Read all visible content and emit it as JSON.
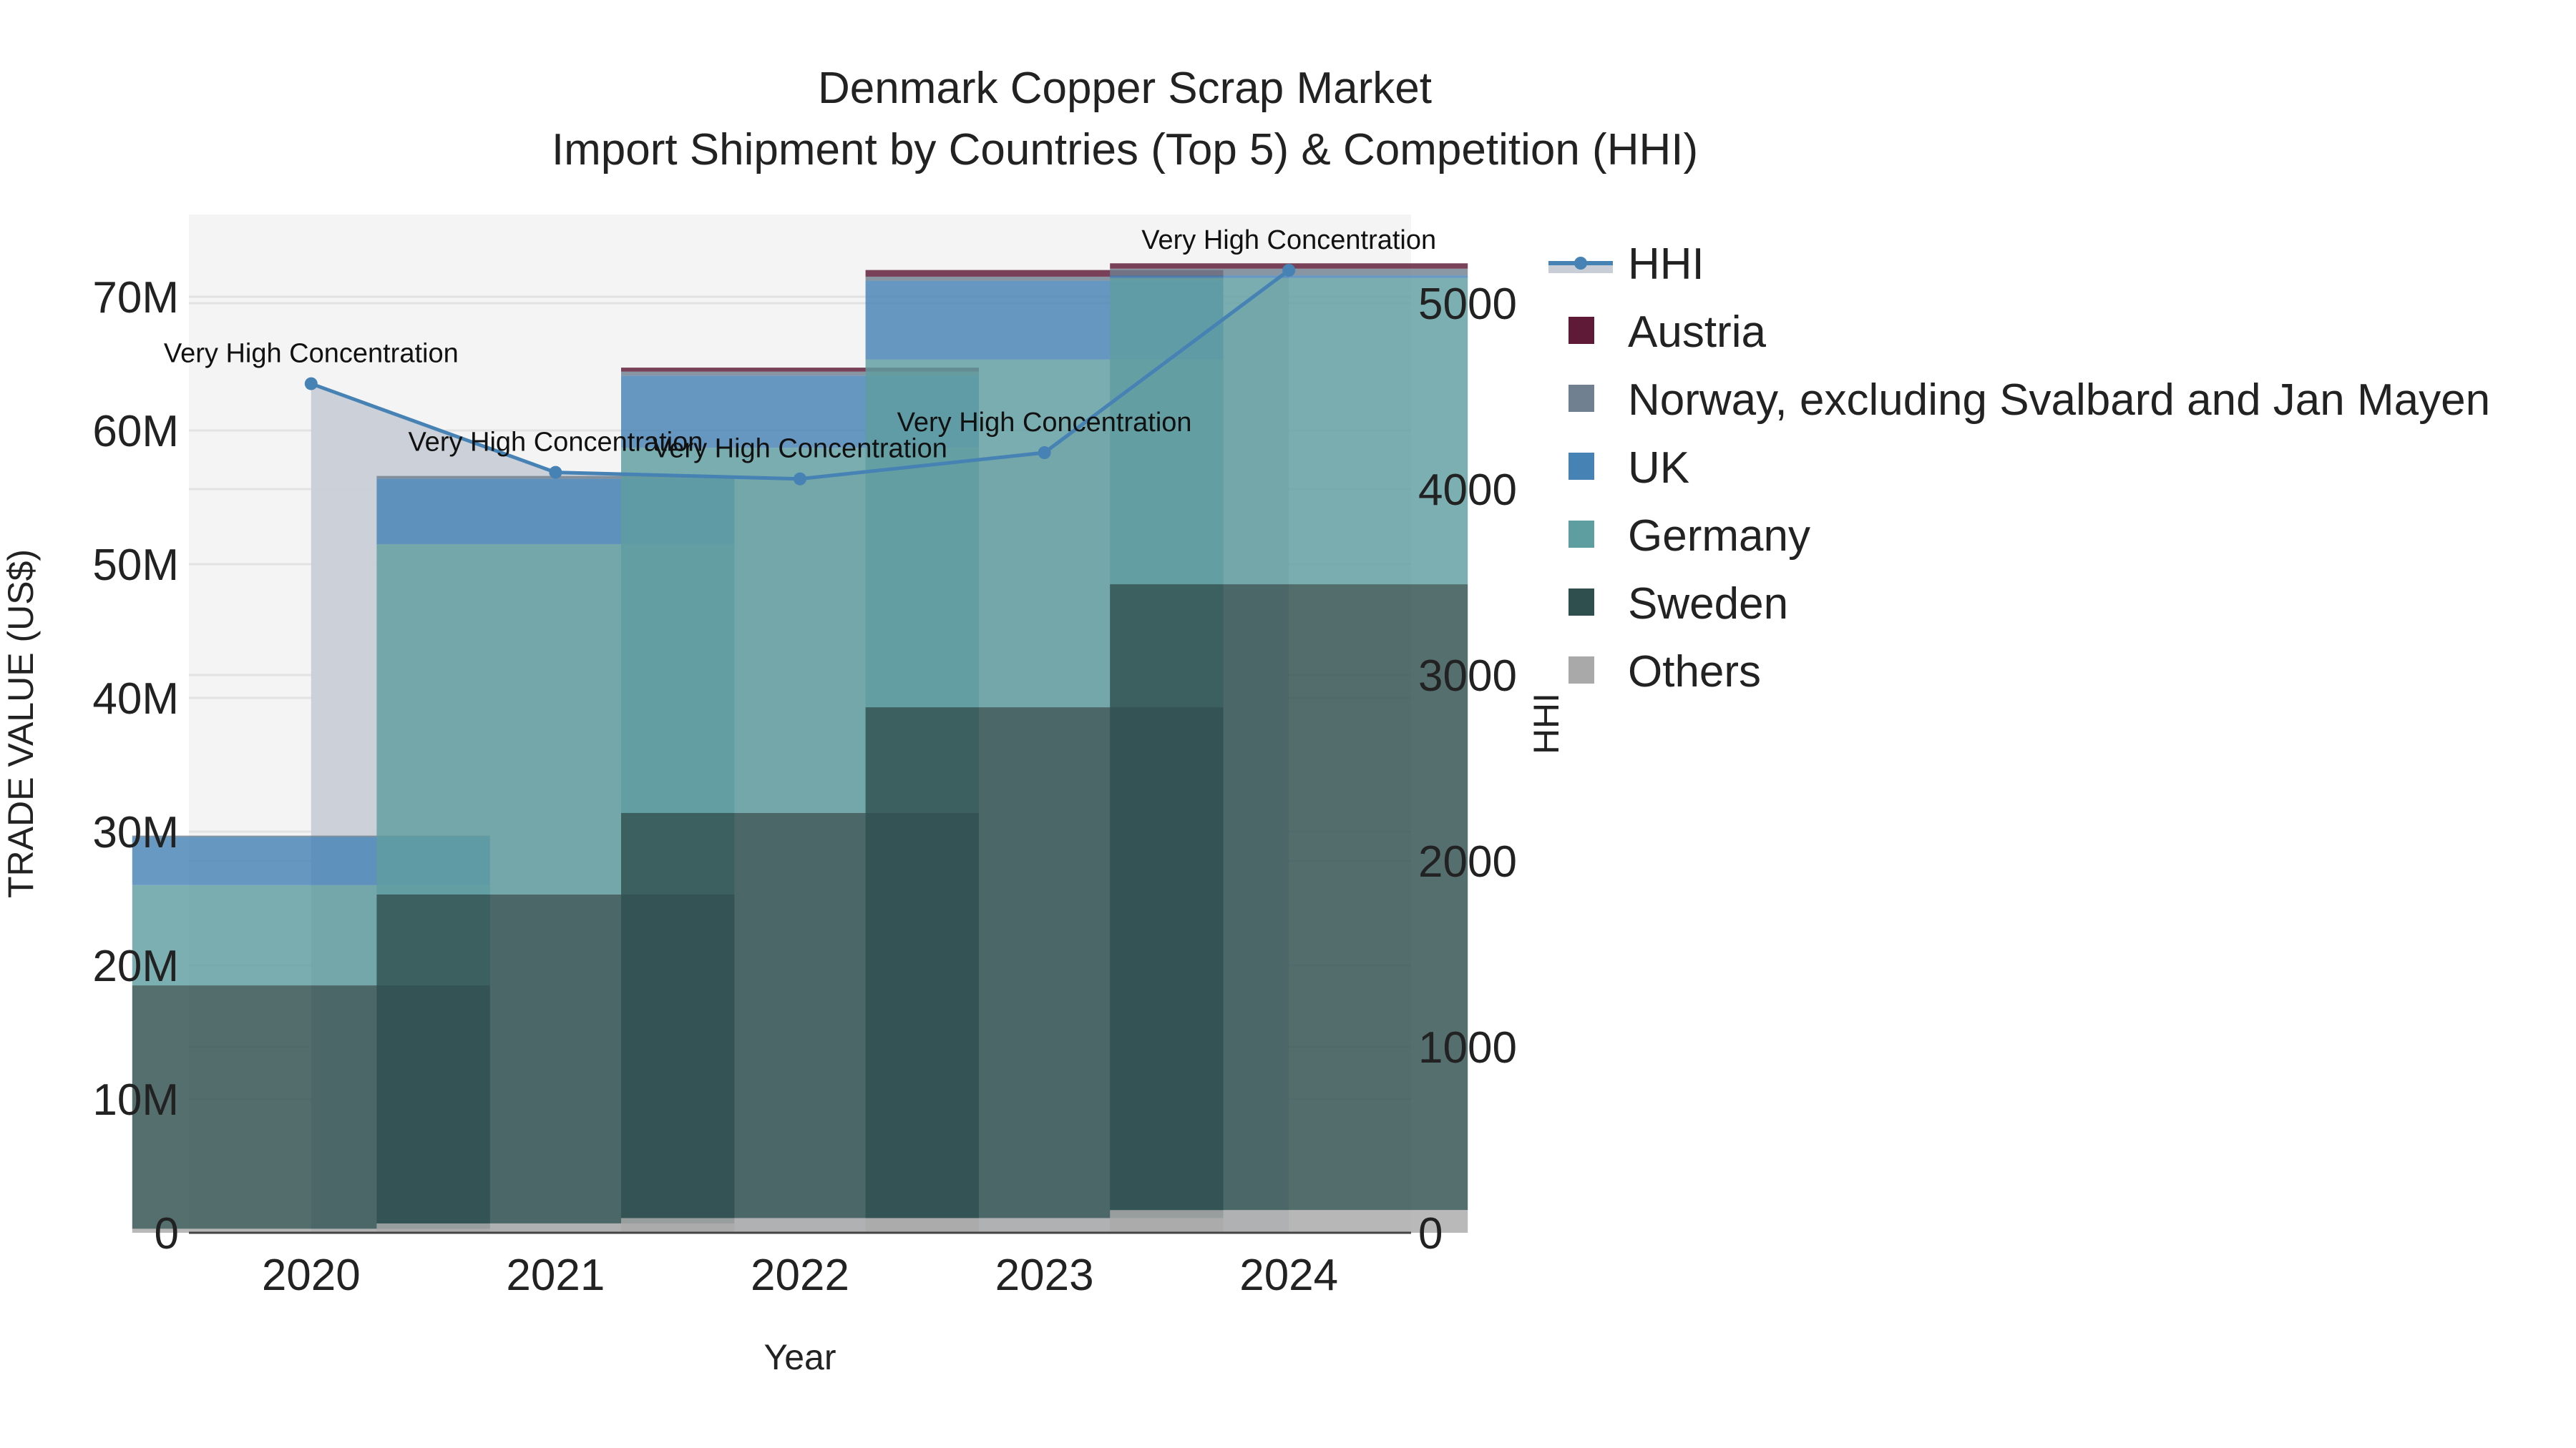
{
  "chart_data": {
    "type": "bar",
    "title": "Denmark Copper Scrap Market",
    "subtitle": "Import Shipment by Countries (Top 5) & Competition (HHI)",
    "xlabel": "Year",
    "ylabel": "TRADE VALUE (US$)",
    "y2label": "HHI",
    "categories": [
      "2020",
      "2021",
      "2022",
      "2023",
      "2024"
    ],
    "ylim": [
      0,
      76000000
    ],
    "y2lim": [
      0,
      5400
    ],
    "yticks": [
      0,
      10000000,
      20000000,
      30000000,
      40000000,
      50000000,
      60000000,
      70000000
    ],
    "ytick_labels": [
      "0",
      "10M",
      "20M",
      "30M",
      "40M",
      "50M",
      "60M",
      "70M"
    ],
    "y2ticks": [
      0,
      1000,
      2000,
      3000,
      4000,
      5000
    ],
    "y2tick_labels": [
      "0",
      "1000",
      "2000",
      "3000",
      "4000",
      "5000"
    ],
    "stacked": true,
    "grid": true,
    "legend_position": "right",
    "series": [
      {
        "name": "Others",
        "color": "#a9a9a9",
        "values": [
          300000,
          700000,
          1100000,
          1100000,
          1700000
        ]
      },
      {
        "name": "Sweden",
        "color": "#2f4f4f",
        "values": [
          18200000,
          24600000,
          30300000,
          38200000,
          46800000
        ]
      },
      {
        "name": "Germany",
        "color": "#5f9ea0",
        "values": [
          7500000,
          26200000,
          27300000,
          26000000,
          22900000
        ]
      },
      {
        "name": "UK",
        "color": "#4682b4",
        "values": [
          3600000,
          4900000,
          5400000,
          5900000,
          200000
        ]
      },
      {
        "name": "Norway, excluding Svalbard and Jan Mayen",
        "color": "#708090",
        "values": [
          100000,
          200000,
          300000,
          300000,
          500000
        ]
      },
      {
        "name": "Austria",
        "color": "#5e1a36",
        "values": [
          0,
          0,
          300000,
          500000,
          400000
        ]
      }
    ],
    "line_series": {
      "name": "HHI",
      "color": "#4682b4",
      "fill_color": "#c9ced6",
      "values": [
        4567,
        4090,
        4055,
        4196,
        5177
      ],
      "annotations": [
        "Very High Concentration",
        "Very High Concentration",
        "Very High Concentration",
        "Very High Concentration",
        "Very High Concentration"
      ]
    }
  },
  "legend": {
    "items": [
      {
        "label": "HHI",
        "color": "#4682b4",
        "kind": "line"
      },
      {
        "label": "Austria",
        "color": "#5e1a36",
        "kind": "box"
      },
      {
        "label": "Norway, excluding Svalbard and Jan Mayen",
        "color": "#708090",
        "kind": "box"
      },
      {
        "label": "UK",
        "color": "#4682b4",
        "kind": "box"
      },
      {
        "label": "Germany",
        "color": "#5f9ea0",
        "kind": "box"
      },
      {
        "label": "Sweden",
        "color": "#2f4f4f",
        "kind": "box"
      },
      {
        "label": "Others",
        "color": "#a9a9a9",
        "kind": "box"
      }
    ]
  }
}
